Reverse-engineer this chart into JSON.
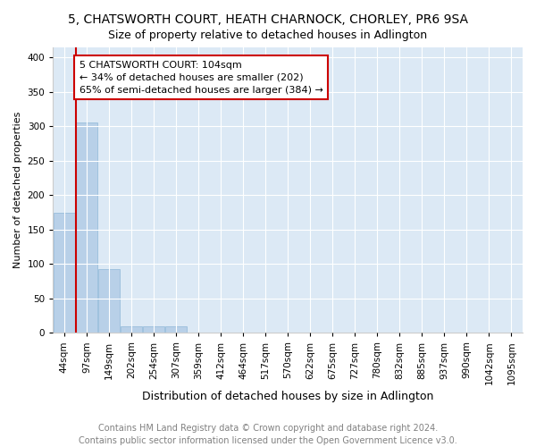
{
  "title": "5, CHATSWORTH COURT, HEATH CHARNOCK, CHORLEY, PR6 9SA",
  "subtitle": "Size of property relative to detached houses in Adlington",
  "xlabel": "Distribution of detached houses by size in Adlington",
  "ylabel": "Number of detached properties",
  "bin_labels": [
    "44sqm",
    "97sqm",
    "149sqm",
    "202sqm",
    "254sqm",
    "307sqm",
    "359sqm",
    "412sqm",
    "464sqm",
    "517sqm",
    "570sqm",
    "622sqm",
    "675sqm",
    "727sqm",
    "780sqm",
    "832sqm",
    "885sqm",
    "937sqm",
    "990sqm",
    "1042sqm",
    "1095sqm"
  ],
  "bar_heights": [
    175,
    305,
    93,
    9,
    9,
    10,
    1,
    0,
    1,
    0,
    0,
    0,
    0,
    0,
    0,
    0,
    0,
    0,
    0,
    1,
    0
  ],
  "bar_color": "#b8d0e8",
  "bar_edge_color": "#8fb8d8",
  "plot_bg_color": "#dce9f5",
  "fig_bg_color": "#ffffff",
  "grid_color": "#ffffff",
  "annotation_text": "5 CHATSWORTH COURT: 104sqm\n← 34% of detached houses are smaller (202)\n65% of semi-detached houses are larger (384) →",
  "annotation_box_color": "#ffffff",
  "annotation_box_edge_color": "#cc0000",
  "property_line_color": "#cc0000",
  "ylim": [
    0,
    415
  ],
  "yticks": [
    0,
    50,
    100,
    150,
    200,
    250,
    300,
    350,
    400
  ],
  "footnote": "Contains HM Land Registry data © Crown copyright and database right 2024.\nContains public sector information licensed under the Open Government Licence v3.0.",
  "title_fontsize": 10,
  "subtitle_fontsize": 9,
  "xlabel_fontsize": 9,
  "ylabel_fontsize": 8,
  "annotation_fontsize": 8,
  "tick_fontsize": 7.5,
  "footnote_fontsize": 7
}
